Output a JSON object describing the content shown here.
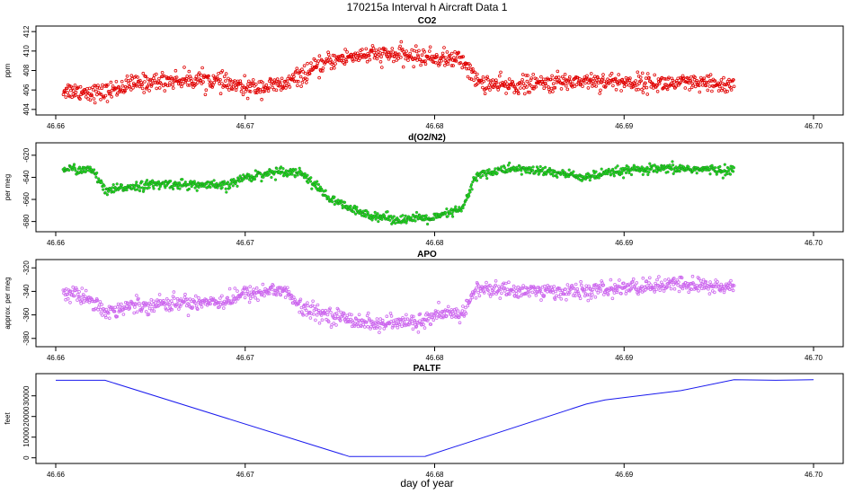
{
  "title": "170215a   Interval h Aircraft Data 1",
  "xlabel": "day of year",
  "chart_data": [
    {
      "type": "scatter",
      "title": "CO2",
      "ylabel": "ppm",
      "color": "#e00000",
      "marker": "open",
      "xlim": [
        46.66,
        46.7
      ],
      "ylim": [
        403.8,
        412.2
      ],
      "xticks": [
        "46.66",
        "46.67",
        "46.68",
        "46.69",
        "46.70"
      ],
      "yticks": [
        "404",
        "406",
        "408",
        "410",
        "412"
      ],
      "x_range": [
        46.6604,
        46.6958
      ],
      "trend_x": [
        46.6604,
        46.6625,
        46.664,
        46.666,
        46.668,
        46.67,
        46.672,
        46.673,
        46.6745,
        46.676,
        46.678,
        46.68,
        46.6815,
        46.6822,
        46.6835,
        46.686,
        46.688,
        46.69,
        46.692,
        46.694,
        46.6958
      ],
      "trend_y": [
        406.0,
        405.7,
        406.6,
        407.0,
        407.1,
        406.2,
        406.5,
        407.5,
        409.0,
        409.6,
        409.6,
        409.3,
        409.1,
        406.9,
        406.4,
        406.7,
        407.0,
        406.8,
        406.7,
        406.6,
        406.5
      ],
      "noise": 0.75
    },
    {
      "type": "scatter",
      "title": "d(O2/N2)",
      "ylabel": "per meg",
      "color": "#22dd22",
      "marker": "filled",
      "xlim": [
        46.66,
        46.7
      ],
      "ylim": [
        -686,
        -612
      ],
      "xticks": [
        "46.66",
        "46.67",
        "46.68",
        "46.69",
        "46.70"
      ],
      "yticks": [
        "-680",
        "-660",
        "-640",
        "-620"
      ],
      "x_range": [
        46.6604,
        46.6958
      ],
      "trend_x": [
        46.6604,
        46.662,
        46.6626,
        46.664,
        46.666,
        46.669,
        46.67,
        46.672,
        46.673,
        46.6745,
        46.676,
        46.678,
        46.68,
        46.6815,
        46.6822,
        46.684,
        46.686,
        46.688,
        46.69,
        46.693,
        46.6958
      ],
      "trend_y": [
        -632,
        -634,
        -653,
        -648,
        -646,
        -648,
        -640,
        -634,
        -636,
        -660,
        -672,
        -678,
        -677,
        -668,
        -638,
        -632,
        -635,
        -640,
        -634,
        -632,
        -634
      ],
      "noise": 3.5
    },
    {
      "type": "scatter",
      "title": "APO",
      "ylabel": "approx. per meg",
      "color": "#cc66ee",
      "marker": "open",
      "xlim": [
        46.66,
        46.7
      ],
      "ylim": [
        -384,
        -316
      ],
      "xticks": [
        "46.66",
        "46.67",
        "46.68",
        "46.69",
        "46.70"
      ],
      "yticks": [
        "-380",
        "-360",
        "-340",
        "-320"
      ],
      "x_range": [
        46.6604,
        46.6958
      ],
      "trend_x": [
        46.6604,
        46.662,
        46.6626,
        46.664,
        46.666,
        46.669,
        46.67,
        46.672,
        46.673,
        46.675,
        46.677,
        46.679,
        46.6805,
        46.6815,
        46.6822,
        46.684,
        46.686,
        46.688,
        46.69,
        46.693,
        46.6958
      ],
      "trend_y": [
        -340,
        -347,
        -358,
        -352,
        -350,
        -348,
        -342,
        -338,
        -355,
        -362,
        -368,
        -366,
        -360,
        -358,
        -338,
        -339,
        -340,
        -340,
        -337,
        -334,
        -337
      ],
      "noise": 5.5
    },
    {
      "type": "line",
      "title": "PALTF",
      "ylabel": "feet",
      "color": "#1a1aee",
      "xlim": [
        46.66,
        46.7
      ],
      "ylim": [
        -1000,
        39000
      ],
      "xticks": [
        "46.66",
        "46.67",
        "46.68",
        "46.69",
        "46.70"
      ],
      "yticks": [
        "0",
        "10000",
        "20000",
        "30000"
      ],
      "x": [
        46.66,
        46.6626,
        46.6755,
        46.6795,
        46.688,
        46.689,
        46.693,
        46.6958,
        46.698,
        46.7
      ],
      "y": [
        37500,
        37500,
        600,
        700,
        26000,
        28000,
        32500,
        37800,
        37500,
        37800
      ]
    }
  ]
}
